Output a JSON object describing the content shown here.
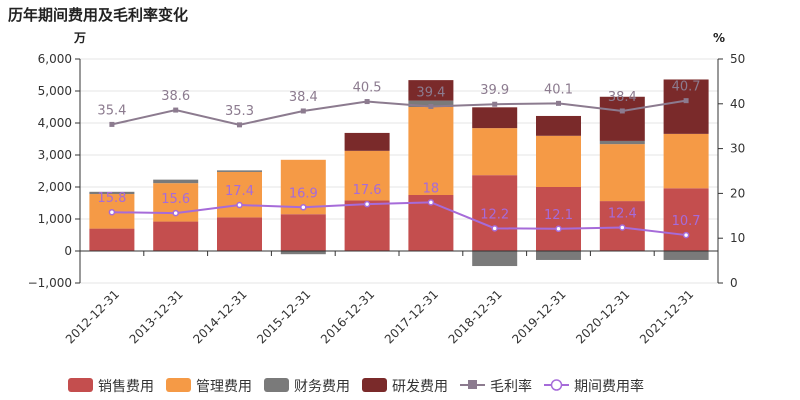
{
  "chart_data": {
    "type": "bar",
    "title": "历年期间费用及毛利率变化",
    "left_unit": "万",
    "right_unit": "%",
    "categories": [
      "2012-12-31",
      "2013-12-31",
      "2014-12-31",
      "2015-12-31",
      "2016-12-31",
      "2017-12-31",
      "2018-12-31",
      "2019-12-31",
      "2020-12-31",
      "2021-12-31"
    ],
    "left_axis": {
      "min": -1000,
      "max": 6000,
      "ticks": [
        -1000,
        0,
        1000,
        2000,
        3000,
        4000,
        5000,
        6000
      ],
      "tick_labels": [
        "−1,000",
        "0",
        "1,000",
        "2,000",
        "3,000",
        "4,000",
        "5,000",
        "6,000"
      ]
    },
    "right_axis": {
      "min": 0,
      "max": 50,
      "ticks": [
        0,
        10,
        20,
        30,
        40,
        50
      ],
      "tick_labels": [
        "0",
        "10",
        "20",
        "30",
        "40",
        "50"
      ]
    },
    "series": [
      {
        "name": "销售费用",
        "kind": "stacked-bar",
        "color": "#c44e4e",
        "values": [
          700,
          920,
          1050,
          1150,
          1580,
          1750,
          2370,
          2000,
          1560,
          1960
        ]
      },
      {
        "name": "管理费用",
        "kind": "stacked-bar",
        "color": "#f59a46",
        "values": [
          1080,
          1200,
          1420,
          1700,
          1550,
          2750,
          1470,
          1600,
          1780,
          1700
        ]
      },
      {
        "name": "财务费用",
        "kind": "stacked-bar",
        "color": "#7a7a7a",
        "values": [
          70,
          110,
          50,
          -100,
          0,
          200,
          -470,
          -280,
          100,
          -280
        ]
      },
      {
        "name": "研发费用",
        "kind": "stacked-bar",
        "color": "#7a2a2a",
        "values": [
          0,
          0,
          0,
          0,
          560,
          640,
          650,
          620,
          1380,
          1700
        ]
      },
      {
        "name": "毛利率",
        "kind": "line",
        "color": "#8c7b8f",
        "axis": "right",
        "values": [
          35.4,
          38.6,
          35.3,
          38.4,
          40.5,
          39.4,
          39.9,
          40.1,
          38.4,
          40.7
        ],
        "labels": [
          "35.4",
          "38.6",
          "35.3",
          "38.4",
          "40.5",
          "39.4",
          "39.9",
          "40.1",
          "38.4",
          "40.7"
        ]
      },
      {
        "name": "期间费用率",
        "kind": "line",
        "color": "#a66bd9",
        "axis": "right",
        "values": [
          15.8,
          15.6,
          17.4,
          16.9,
          17.6,
          18,
          12.2,
          12.1,
          12.4,
          10.7
        ],
        "labels": [
          "15.8",
          "15.6",
          "17.4",
          "16.9",
          "17.6",
          "18",
          "12.2",
          "12.1",
          "12.4",
          "10.7"
        ]
      }
    ]
  }
}
